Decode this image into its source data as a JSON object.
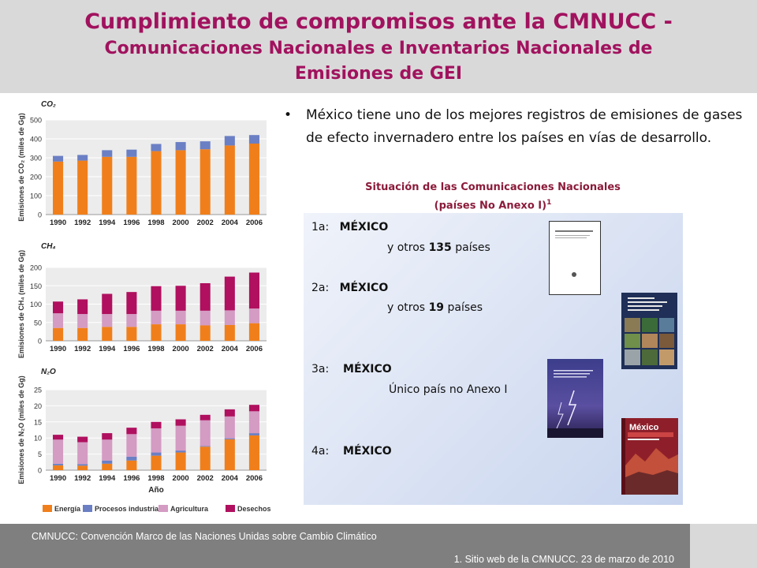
{
  "header": {
    "title_line1": "Cumplimiento de compromisos ante la CMNUCC -",
    "title_line2": "Comunicaciones Nacionales e Inventarios Nacionales de",
    "title_line3": "Emisiones de GEI"
  },
  "bullet": {
    "symbol": "•",
    "text": "México tiene uno de los mejores registros de emisiones de gases de efecto invernadero entre los países en vías de desarrollo."
  },
  "situation": {
    "title_line1": "Situación de las Comunicaciones Nacionales",
    "title_line2": "(países No Anexo I)",
    "footnote_mark": "1",
    "items": [
      {
        "tag": "1a:",
        "country": "MÉXICO",
        "prefix": "y otros",
        "count": "135",
        "suffix": "países"
      },
      {
        "tag": "2a:",
        "country": "MÉXICO",
        "prefix": "y otros",
        "count": "19",
        "suffix": "países"
      },
      {
        "tag": "3a:",
        "country": "MÉXICO",
        "note": "Único país no Anexo I"
      },
      {
        "tag": "4a:",
        "country": "MÉXICO"
      }
    ],
    "book4_title": "México"
  },
  "footer": {
    "definition": "CMNUCC: Convención Marco de las Naciones Unidas sobre Cambio Climático",
    "source": "1. Sitio web de la CMNUCC. 23 de marzo de 2010"
  },
  "colors": {
    "energia": "#f07f1b",
    "procesos": "#6b7fc4",
    "agricultura": "#d49bc3",
    "desechos": "#b0105f"
  },
  "chart_data": [
    {
      "type": "bar",
      "stacked": true,
      "title": "CO₂",
      "ylabel": "Emisiones de CO₂ (miles de Gg)",
      "categories": [
        "1990",
        "1992",
        "1994",
        "1996",
        "1998",
        "2000",
        "2002",
        "2004",
        "2006"
      ],
      "ylim": [
        0,
        500
      ],
      "yticks": [
        0,
        100,
        200,
        300,
        400,
        500
      ],
      "grid": true,
      "series": [
        {
          "name": "Energía",
          "values": [
            280,
            285,
            305,
            305,
            335,
            340,
            345,
            365,
            375
          ]
        },
        {
          "name": "Procesos industriales",
          "values": [
            30,
            30,
            35,
            38,
            38,
            43,
            42,
            50,
            45
          ]
        }
      ]
    },
    {
      "type": "bar",
      "stacked": true,
      "title": "CH₄",
      "ylabel": "Emisiones de CH₄ (miles de Gg)",
      "categories": [
        "1990",
        "1992",
        "1994",
        "1996",
        "1998",
        "2000",
        "2002",
        "2004",
        "2006"
      ],
      "ylim": [
        0,
        200
      ],
      "yticks": [
        0,
        50,
        100,
        150,
        200
      ],
      "grid": true,
      "series": [
        {
          "name": "Energía",
          "values": [
            35,
            35,
            38,
            38,
            45,
            45,
            42,
            43,
            48
          ]
        },
        {
          "name": "Agricultura",
          "values": [
            40,
            38,
            35,
            35,
            37,
            37,
            40,
            40,
            40
          ]
        },
        {
          "name": "Desechos",
          "values": [
            32,
            40,
            55,
            60,
            67,
            68,
            75,
            92,
            98
          ]
        }
      ]
    },
    {
      "type": "bar",
      "stacked": true,
      "title": "N₂O",
      "ylabel": "Emisiones de N₂O (miles de Gg)",
      "xlabel": "Año",
      "categories": [
        "1990",
        "1992",
        "1994",
        "1996",
        "1998",
        "2000",
        "2002",
        "2004",
        "2006"
      ],
      "ylim": [
        0,
        25
      ],
      "yticks": [
        0,
        5,
        10,
        15,
        20,
        25
      ],
      "grid": true,
      "series": [
        {
          "name": "Energía",
          "values": [
            1.5,
            1.4,
            2.0,
            3.0,
            4.5,
            5.5,
            7.3,
            9.6,
            10.8
          ]
        },
        {
          "name": "Procesos industriales",
          "values": [
            0.5,
            0.5,
            1.0,
            1.2,
            1.0,
            0.6,
            0.2,
            0.3,
            0.7
          ]
        },
        {
          "name": "Agricultura",
          "values": [
            7.5,
            6.8,
            6.5,
            7.0,
            7.5,
            7.7,
            8.0,
            6.8,
            6.8
          ]
        },
        {
          "name": "Desechos",
          "values": [
            1.5,
            1.7,
            2.0,
            2.0,
            2.0,
            2.0,
            1.7,
            2.2,
            2.0
          ]
        }
      ]
    }
  ],
  "legend": [
    {
      "label": "Energía",
      "color": "#f07f1b"
    },
    {
      "label": "Procesos industriales",
      "color": "#6b7fc4"
    },
    {
      "label": "Agricultura",
      "color": "#d49bc3"
    },
    {
      "label": "Desechos",
      "color": "#b0105f"
    }
  ]
}
